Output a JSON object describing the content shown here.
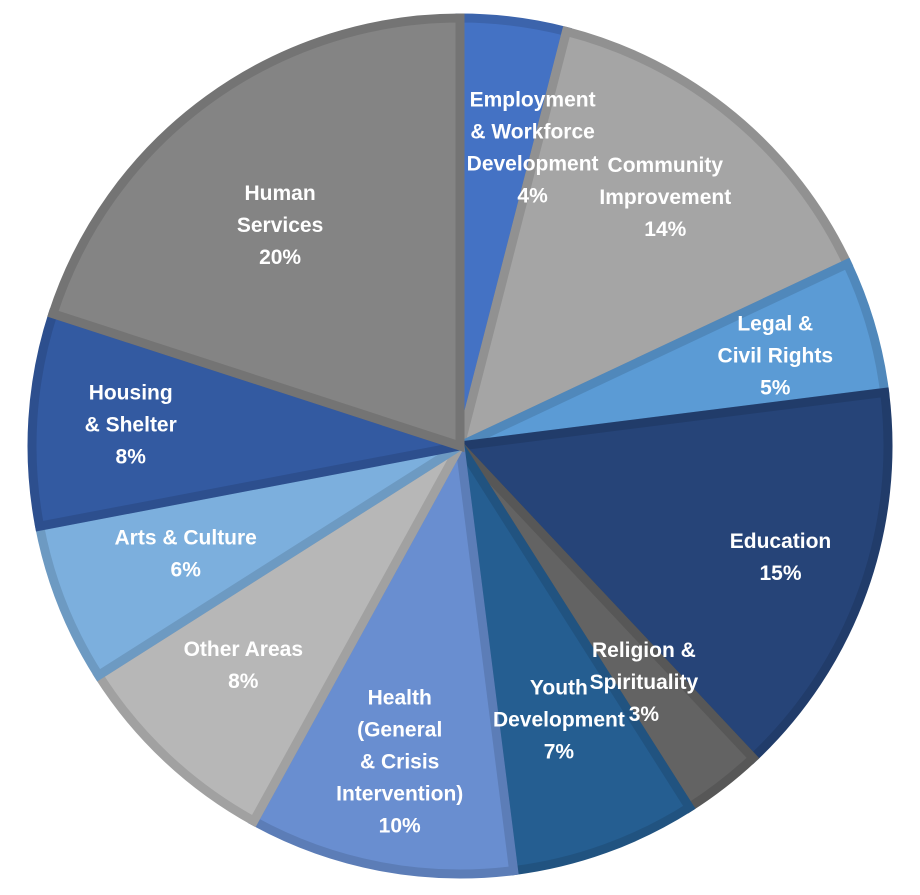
{
  "chart_data": {
    "type": "pie",
    "title": "",
    "start_angle_deg": 0,
    "direction": "clockwise",
    "slices": [
      {
        "label_lines": [
          "Employment",
          "& Workforce",
          "Development"
        ],
        "value": 4,
        "value_label": "4%",
        "color": "#4472C4"
      },
      {
        "label_lines": [
          "Community",
          "Improvement"
        ],
        "value": 14,
        "value_label": "14%",
        "color": "#A5A5A5"
      },
      {
        "label_lines": [
          "Legal &",
          "Civil Rights"
        ],
        "value": 5,
        "value_label": "5%",
        "color": "#5B9BD5"
      },
      {
        "label_lines": [
          "Education"
        ],
        "value": 15,
        "value_label": "15%",
        "color": "#264478"
      },
      {
        "label_lines": [
          "Religion &",
          "Spirituality"
        ],
        "value": 3,
        "value_label": "3%",
        "color": "#636363"
      },
      {
        "label_lines": [
          "Youth",
          "Development"
        ],
        "value": 7,
        "value_label": "7%",
        "color": "#255E91"
      },
      {
        "label_lines": [
          "Health",
          "(General",
          "& Crisis",
          "Intervention)"
        ],
        "value": 10,
        "value_label": "10%",
        "color": "#698ED0"
      },
      {
        "label_lines": [
          "Other Areas"
        ],
        "value": 8,
        "value_label": "8%",
        "color": "#B7B7B7"
      },
      {
        "label_lines": [
          "Arts & Culture"
        ],
        "value": 6,
        "value_label": "6%",
        "color": "#7CAFDD"
      },
      {
        "label_lines": [
          "Housing",
          "& Shelter"
        ],
        "value": 8,
        "value_label": "8%",
        "color": "#335AA1"
      },
      {
        "label_lines": [
          "Human",
          "Services"
        ],
        "value": 20,
        "value_label": "20%",
        "color": "#848484"
      }
    ]
  }
}
